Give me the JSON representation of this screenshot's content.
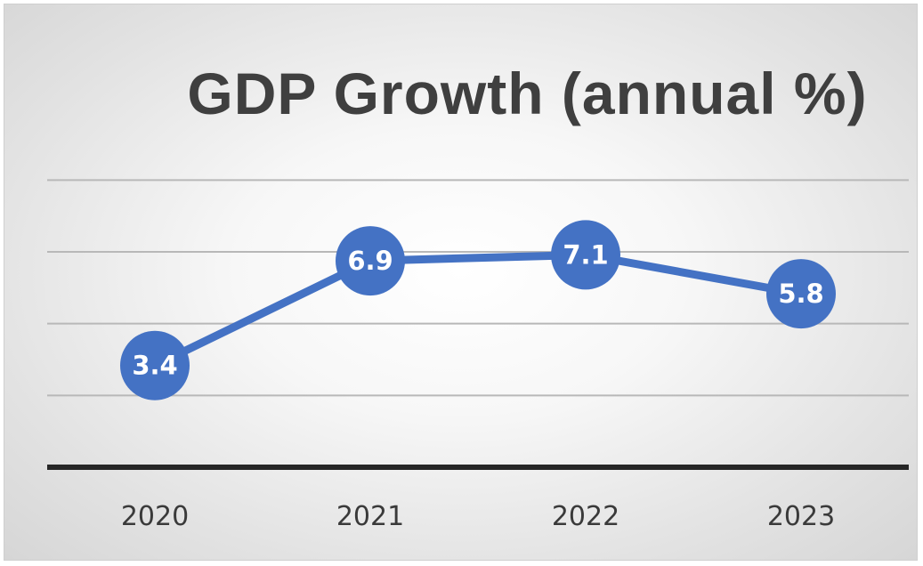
{
  "chart_data": {
    "type": "line",
    "title": "GDP Growth (annual %)",
    "categories": [
      "2020",
      "2021",
      "2022",
      "2023"
    ],
    "series": [
      {
        "values": [
          3.4,
          6.9,
          7.1,
          5.8
        ]
      }
    ],
    "data_labels": [
      "3.4",
      "6.9",
      "7.1",
      "5.8"
    ],
    "ylim": [
      0,
      9.7
    ],
    "grid": true,
    "legend": "none",
    "colors": {
      "line": "#4472C4",
      "axis": "#262626",
      "grid": "#b8b8b8",
      "title": "#3f3f3f"
    }
  }
}
